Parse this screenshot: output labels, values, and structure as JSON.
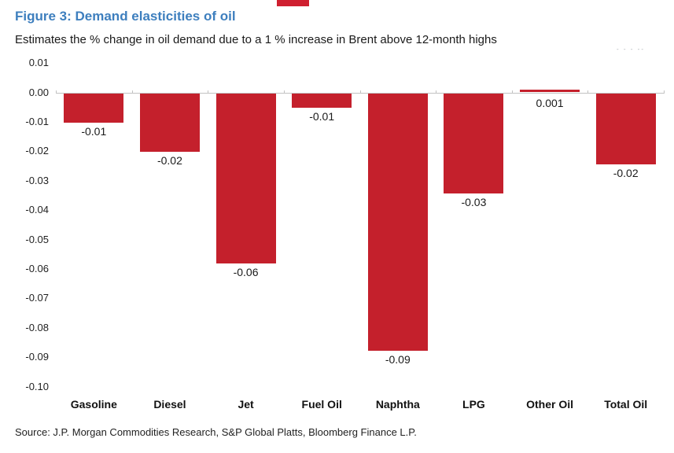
{
  "header": {
    "title": "Figure 3: Demand elasticities of oil",
    "subtitle": "Estimates the % change in oil demand due to a 1 % increase in Brent above 12-month highs"
  },
  "footer": {
    "source": "Source: J.P. Morgan Commodities Research, S&P Global Platts, Bloomberg Finance L.P."
  },
  "artifacts": {
    "smudge_text": "- -  - --"
  },
  "colors": {
    "bar_red": "#c4202c",
    "title_blue": "#3e7fbe",
    "axis_gray": "#c2c2c2"
  },
  "chart_data": {
    "type": "bar",
    "title": "Figure 3: Demand elasticities of oil",
    "subtitle": "Estimates the % change in oil demand due to a 1 % increase in Brent above 12-month highs",
    "categories": [
      "Gasoline",
      "Diesel",
      "Jet",
      "Fuel Oil",
      "Naphtha",
      "LPG",
      "Other Oil",
      "Total Oil"
    ],
    "values": [
      -0.01,
      -0.02,
      -0.058,
      -0.005,
      -0.0875,
      -0.034,
      0.001,
      -0.0243
    ],
    "data_labels": [
      "-0.01",
      "-0.02",
      "-0.06",
      "-0.01",
      "-0.09",
      "-0.03",
      "0.001",
      "-0.02"
    ],
    "ytick_values": [
      0.01,
      0.0,
      -0.01,
      -0.02,
      -0.03,
      -0.04,
      -0.05,
      -0.06,
      -0.07,
      -0.08,
      -0.09,
      -0.1
    ],
    "ytick_labels": [
      "0.01",
      "0.00",
      "-0.01",
      "-0.02",
      "-0.03",
      "-0.04",
      "-0.05",
      "-0.06",
      "-0.07",
      "-0.08",
      "-0.09",
      "-0.10"
    ],
    "ylim": [
      -0.1,
      0.01
    ],
    "xlabel": "",
    "ylabel": "",
    "grid": false,
    "legend_position": "none",
    "bar_color": "#c4202c",
    "source": "Source: J.P. Morgan Commodities Research, S&P Global Platts, Bloomberg Finance L.P."
  }
}
